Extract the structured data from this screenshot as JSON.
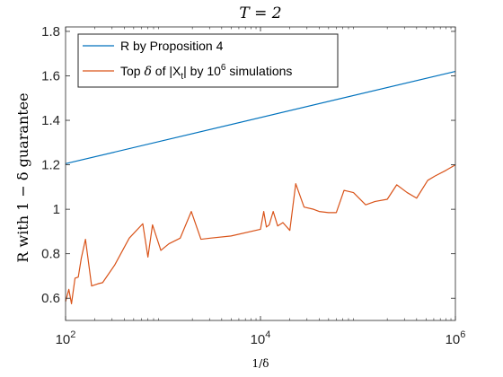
{
  "chart_data": {
    "type": "line",
    "title": "T = 2",
    "xlabel": "1/δ",
    "ylabel": "R with 1 − δ guarantee",
    "xscale": "log",
    "xlim": [
      100,
      1000000
    ],
    "ylim": [
      0.5,
      1.82
    ],
    "xticks": [
      {
        "value": 100,
        "base": "10",
        "exp": "2"
      },
      {
        "value": 10000,
        "base": "10",
        "exp": "4"
      },
      {
        "value": 1000000,
        "base": "10",
        "exp": "6"
      }
    ],
    "yticks": [
      {
        "value": 0.6,
        "label": "0.6"
      },
      {
        "value": 0.8,
        "label": "0.8"
      },
      {
        "value": 1.0,
        "label": "1"
      },
      {
        "value": 1.2,
        "label": "1.2"
      },
      {
        "value": 1.4,
        "label": "1.4"
      },
      {
        "value": 1.6,
        "label": "1.6"
      },
      {
        "value": 1.8,
        "label": "1.8"
      }
    ],
    "grid": false,
    "legend_position": "top-left",
    "series": [
      {
        "name": "R by Proposition 4",
        "color": "#0072BD",
        "x": [
          100,
          1000000
        ],
        "y": [
          1.205,
          1.62
        ]
      },
      {
        "name_parts": {
          "pre": "Top ",
          "delta": "δ",
          "mid": " of |X",
          "sub": "t",
          "post": "|  by 10",
          "sup": "6",
          "end": " simulations"
        },
        "color": "#D95319",
        "x": [
          100,
          108,
          115,
          125,
          135,
          145,
          160,
          185,
          215,
          240,
          320,
          450,
          620,
          700,
          780,
          950,
          1150,
          1500,
          1950,
          2450,
          3050,
          5000,
          10000,
          10800,
          11500,
          12300,
          13500,
          15000,
          17000,
          20000,
          23000,
          28000,
          35000,
          40000,
          50000,
          60000,
          72000,
          90000,
          120000,
          150000,
          200000,
          250000,
          320000,
          400000,
          520000,
          620000,
          800000,
          1000000
        ],
        "y": [
          0.585,
          0.64,
          0.575,
          0.69,
          0.695,
          0.78,
          0.865,
          0.655,
          0.665,
          0.67,
          0.75,
          0.87,
          0.935,
          0.785,
          0.93,
          0.815,
          0.845,
          0.87,
          0.99,
          0.865,
          0.87,
          0.88,
          0.91,
          0.99,
          0.92,
          0.93,
          0.99,
          0.925,
          0.94,
          0.905,
          1.115,
          1.01,
          1.0,
          0.99,
          0.985,
          0.985,
          1.085,
          1.075,
          1.02,
          1.035,
          1.045,
          1.11,
          1.075,
          1.05,
          1.13,
          1.15,
          1.175,
          1.2
        ]
      }
    ]
  }
}
